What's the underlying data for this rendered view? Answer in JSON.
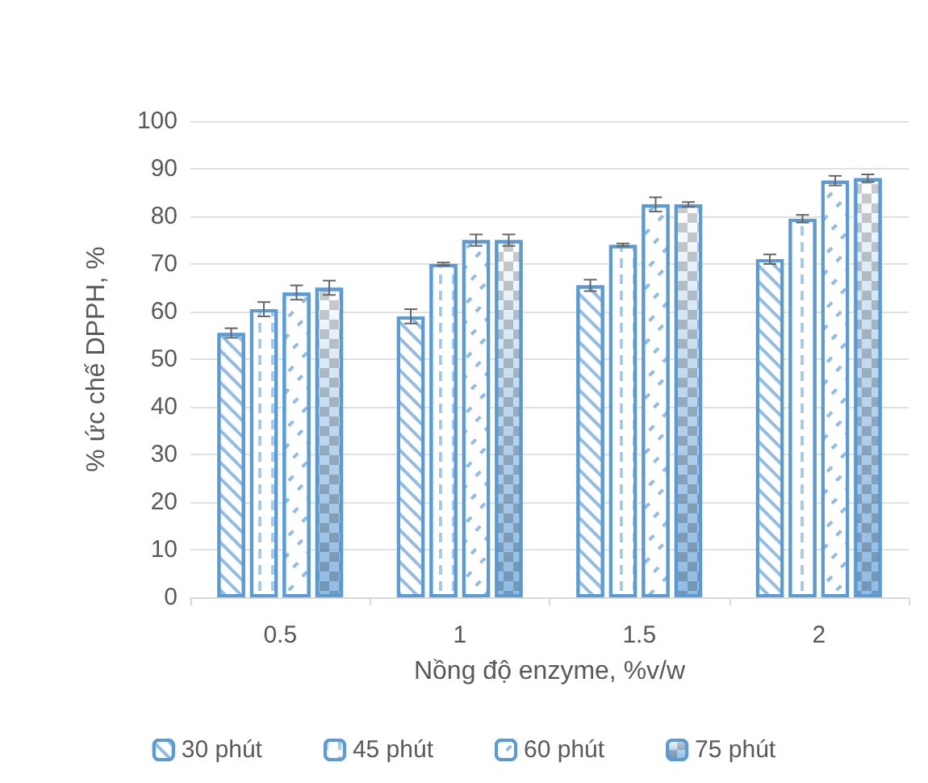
{
  "chart_data": {
    "type": "bar",
    "xlabel": "Nồng độ enzyme, %v/w",
    "ylabel": "% ức chế DPPH, %",
    "categories": [
      "0.5",
      "1",
      "1.5",
      "2"
    ],
    "series": [
      {
        "name": "30 phút",
        "color": "#5b9bd5",
        "values": [
          55.5,
          59,
          65.5,
          71
        ],
        "errors": [
          1,
          1.5,
          1.2,
          1
        ]
      },
      {
        "name": "45 phút",
        "color": "#5b9bd5",
        "values": [
          60.5,
          70,
          74,
          79.5
        ],
        "errors": [
          1.5,
          0.3,
          0.3,
          0.8
        ]
      },
      {
        "name": "60 phút",
        "color": "#5b9bd5",
        "values": [
          64,
          75,
          82.5,
          87.5
        ],
        "errors": [
          1.5,
          1.2,
          1.5,
          1
        ]
      },
      {
        "name": "75 phút",
        "color": "#5b9bd5",
        "values": [
          65,
          75,
          82.5,
          88
        ],
        "errors": [
          1.5,
          1.2,
          0.5,
          0.8
        ]
      }
    ],
    "ylim": [
      0,
      100
    ],
    "yticks": [
      0,
      10,
      20,
      30,
      40,
      50,
      60,
      70,
      80,
      90,
      100
    ],
    "grid": "y",
    "legend": "bottom"
  }
}
